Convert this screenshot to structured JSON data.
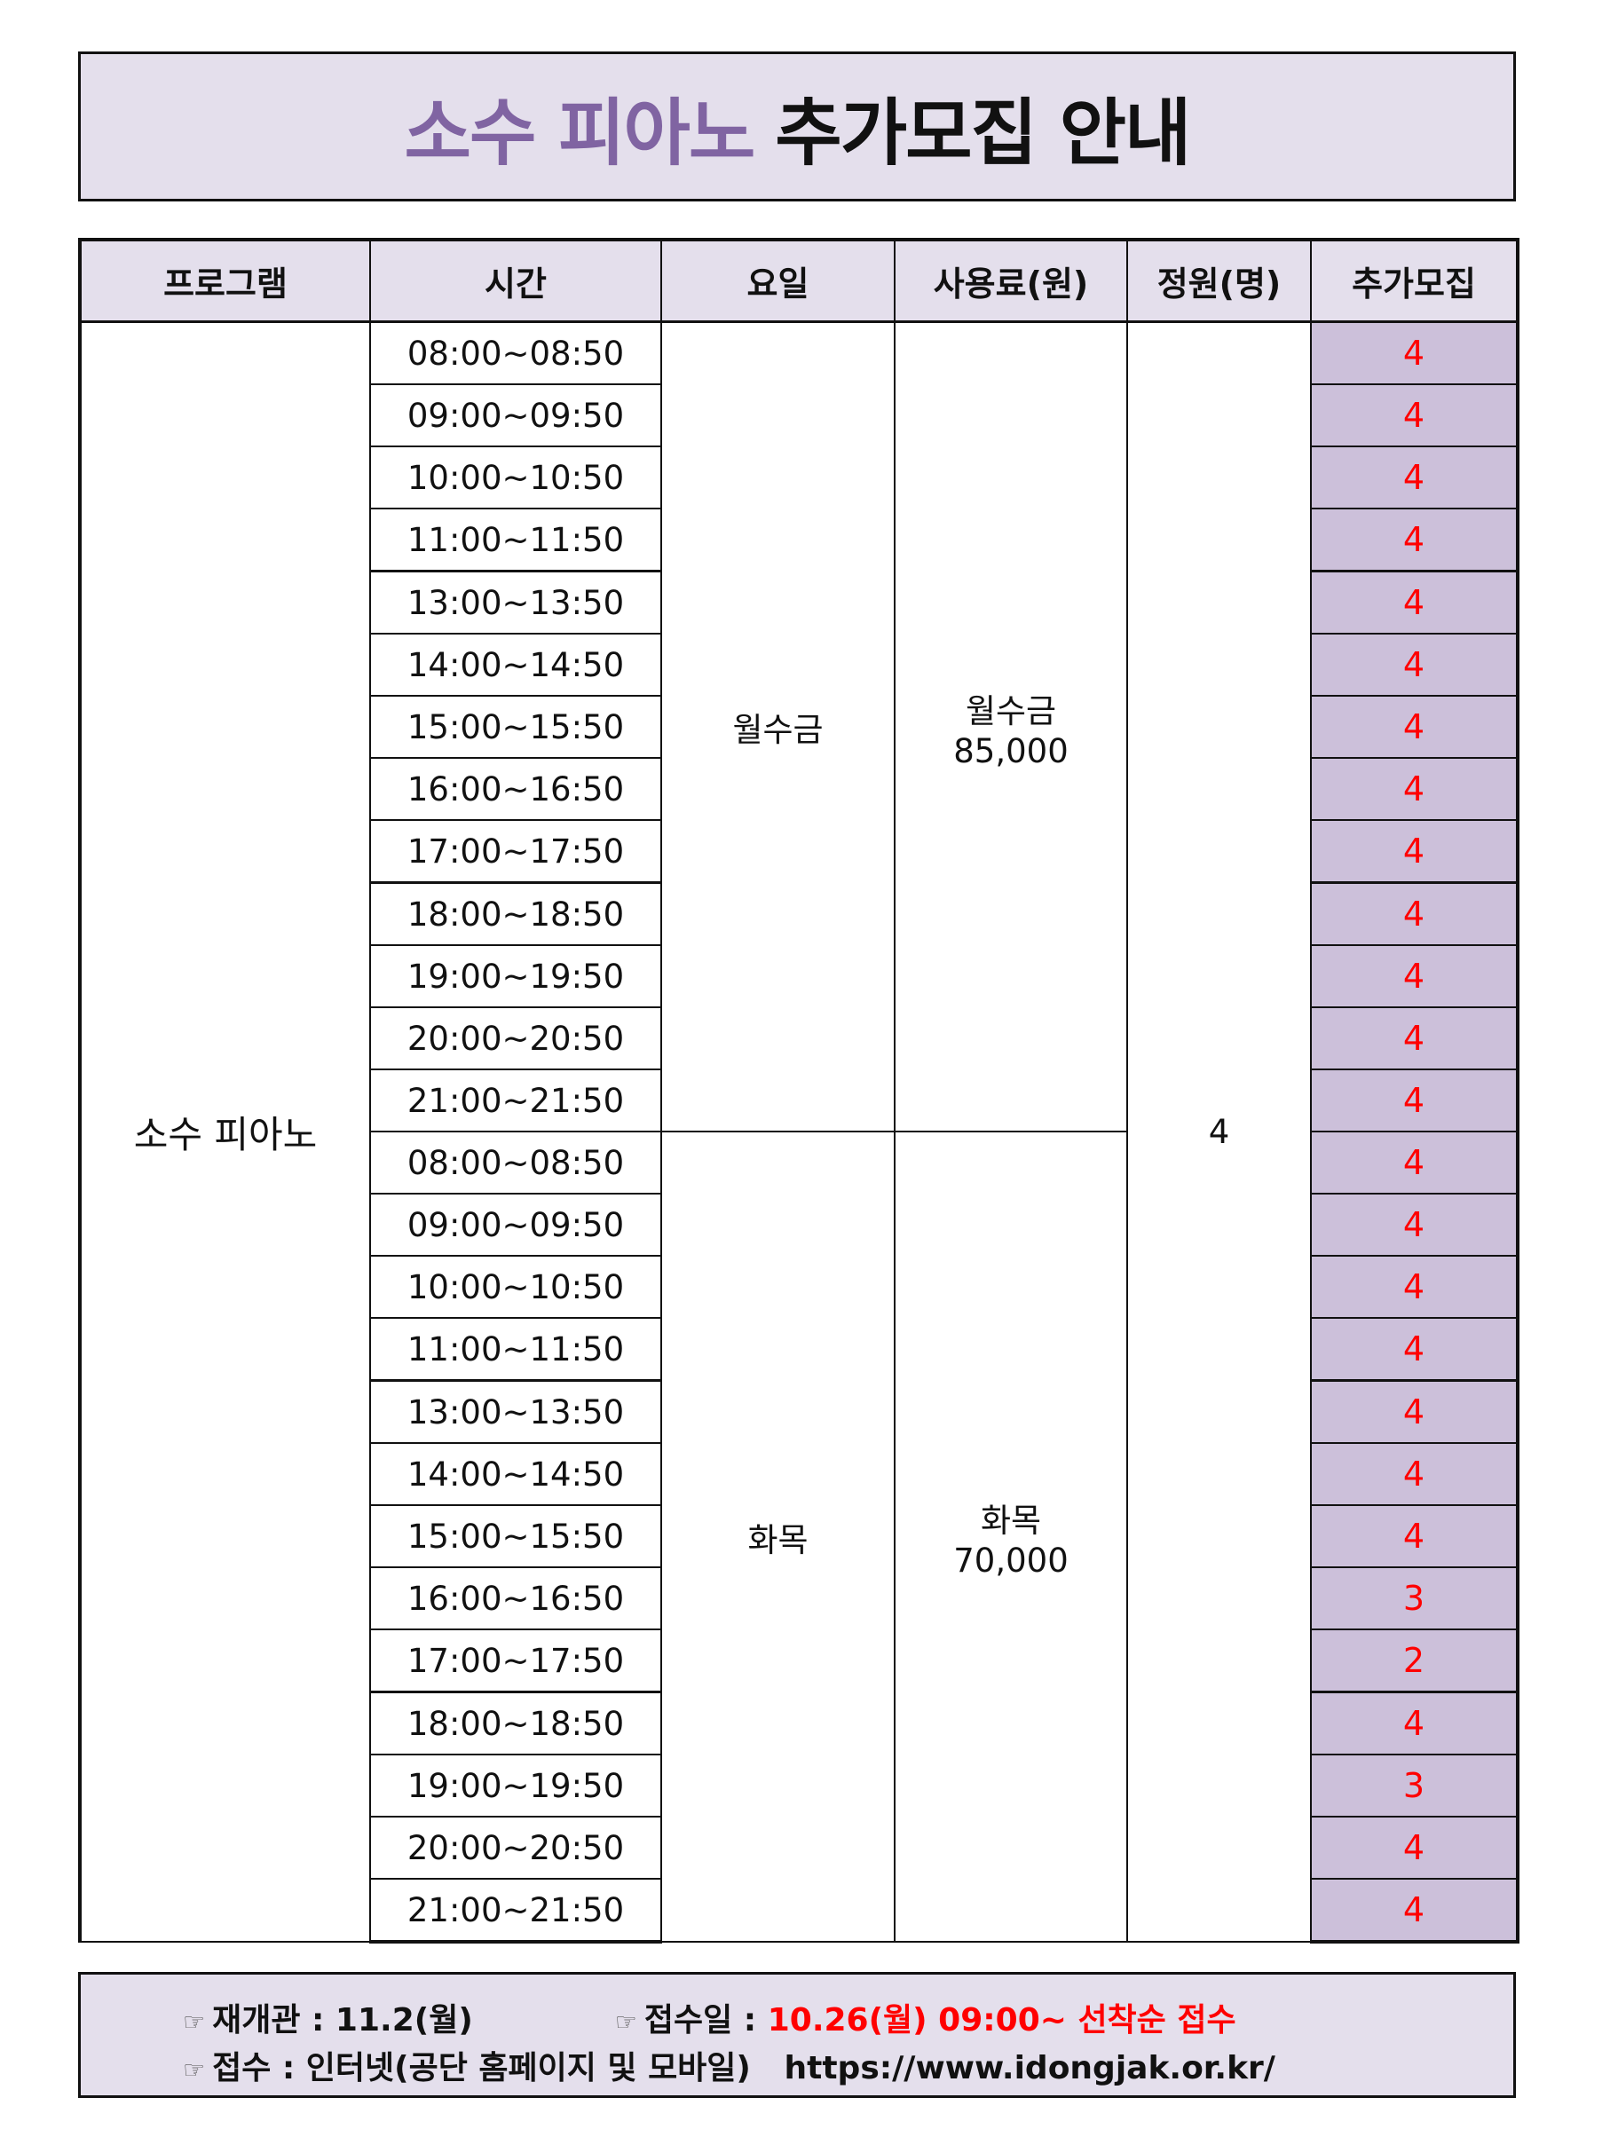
{
  "title": {
    "accent": "소수 피아노",
    "main": "추가모집 안내"
  },
  "table": {
    "headers": [
      "프로그램",
      "시간",
      "요일",
      "사용료(원)",
      "정원(명)",
      "추가모집"
    ],
    "program": "소수 피아노",
    "capacity": "4",
    "groups": [
      {
        "days": "월수금",
        "fee_days": "월수금",
        "fee": "85,000",
        "times": [
          "08:00~08:50",
          "09:00~09:50",
          "10:00~10:50",
          "11:00~11:50",
          "13:00~13:50",
          "14:00~14:50",
          "15:00~15:50",
          "16:00~16:50",
          "17:00~17:50",
          "18:00~18:50",
          "19:00~19:50",
          "20:00~20:50",
          "21:00~21:50"
        ],
        "extra": [
          "4",
          "4",
          "4",
          "4",
          "4",
          "4",
          "4",
          "4",
          "4",
          "4",
          "4",
          "4",
          "4"
        ]
      },
      {
        "days": "화목",
        "fee_days": "화목",
        "fee": "70,000",
        "times": [
          "08:00~08:50",
          "09:00~09:50",
          "10:00~10:50",
          "11:00~11:50",
          "13:00~13:50",
          "14:00~14:50",
          "15:00~15:50",
          "16:00~16:50",
          "17:00~17:50",
          "18:00~18:50",
          "19:00~19:50",
          "20:00~20:50",
          "21:00~21:50"
        ],
        "extra": [
          "4",
          "4",
          "4",
          "4",
          "4",
          "4",
          "4",
          "3",
          "2",
          "4",
          "3",
          "4",
          "4"
        ]
      }
    ]
  },
  "footer": {
    "icon": "pointing-hand-icon",
    "reopen_label": "재개관 : 11.2(월)",
    "apply_date_label": "접수일 : ",
    "apply_date_value": "10.26(월) 09:00~ 선착순 접수",
    "apply_method_label": "접수 : 인터넷(공단 홈페이지 및 모바일)",
    "url": "https://www.idongjak.or.kr/"
  },
  "colors": {
    "accent": "#8064a2",
    "header_bg": "#e4dfec",
    "extra_bg": "#ccc0da",
    "extra_text": "#ff0000"
  }
}
